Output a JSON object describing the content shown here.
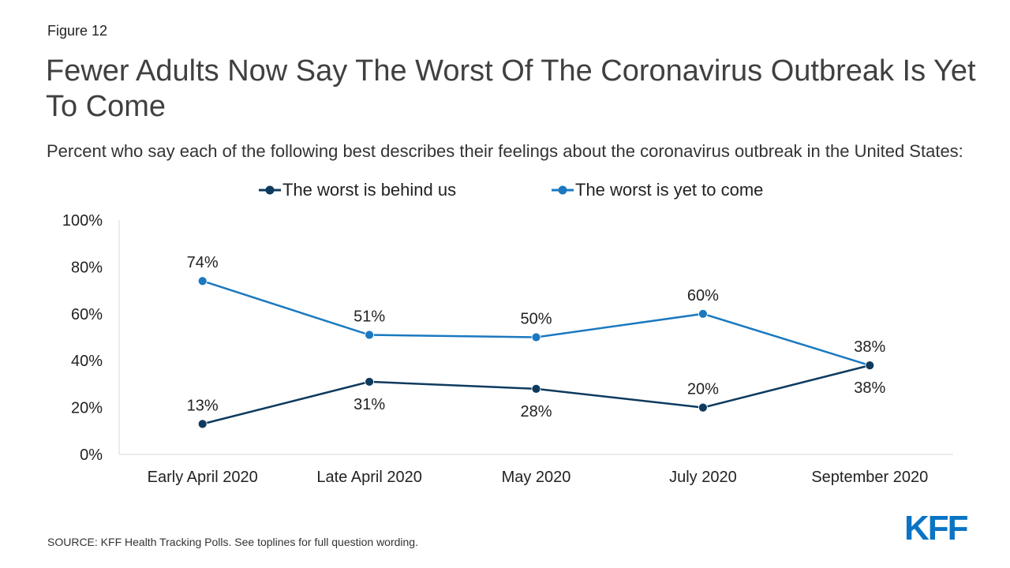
{
  "figure_label": "Figure 12",
  "chart_data": {
    "type": "line",
    "title": "Fewer Adults Now Say The Worst Of The Coronavirus Outbreak Is Yet To Come",
    "subtitle": "Percent who say each of the following best describes their feelings about the coronavirus outbreak in the United States:",
    "categories": [
      "Early April 2020",
      "Late April 2020",
      "May 2020",
      "July 2020",
      "September 2020"
    ],
    "ylim": [
      0,
      100
    ],
    "yticks": [
      "0%",
      "20%",
      "40%",
      "60%",
      "80%",
      "100%"
    ],
    "ytick_values": [
      0,
      20,
      40,
      60,
      80,
      100
    ],
    "grid": false,
    "legend_position": "top",
    "series": [
      {
        "name": "The worst is behind us",
        "color": "#0e3a5e",
        "values": [
          13,
          31,
          28,
          20,
          38
        ],
        "labels": [
          "13%",
          "31%",
          "28%",
          "20%",
          "38%"
        ],
        "label_side": [
          "above",
          "below",
          "below",
          "above",
          "below"
        ]
      },
      {
        "name": "The worst is yet to come",
        "color": "#1a79c0",
        "values": [
          74,
          51,
          50,
          60,
          38
        ],
        "labels": [
          "74%",
          "51%",
          "50%",
          "60%",
          "38%"
        ],
        "label_side": [
          "above",
          "above",
          "above",
          "above",
          "above"
        ]
      }
    ]
  },
  "source": "SOURCE: KFF Health Tracking Polls. See toplines for full question wording.",
  "logo_text": "KFF"
}
